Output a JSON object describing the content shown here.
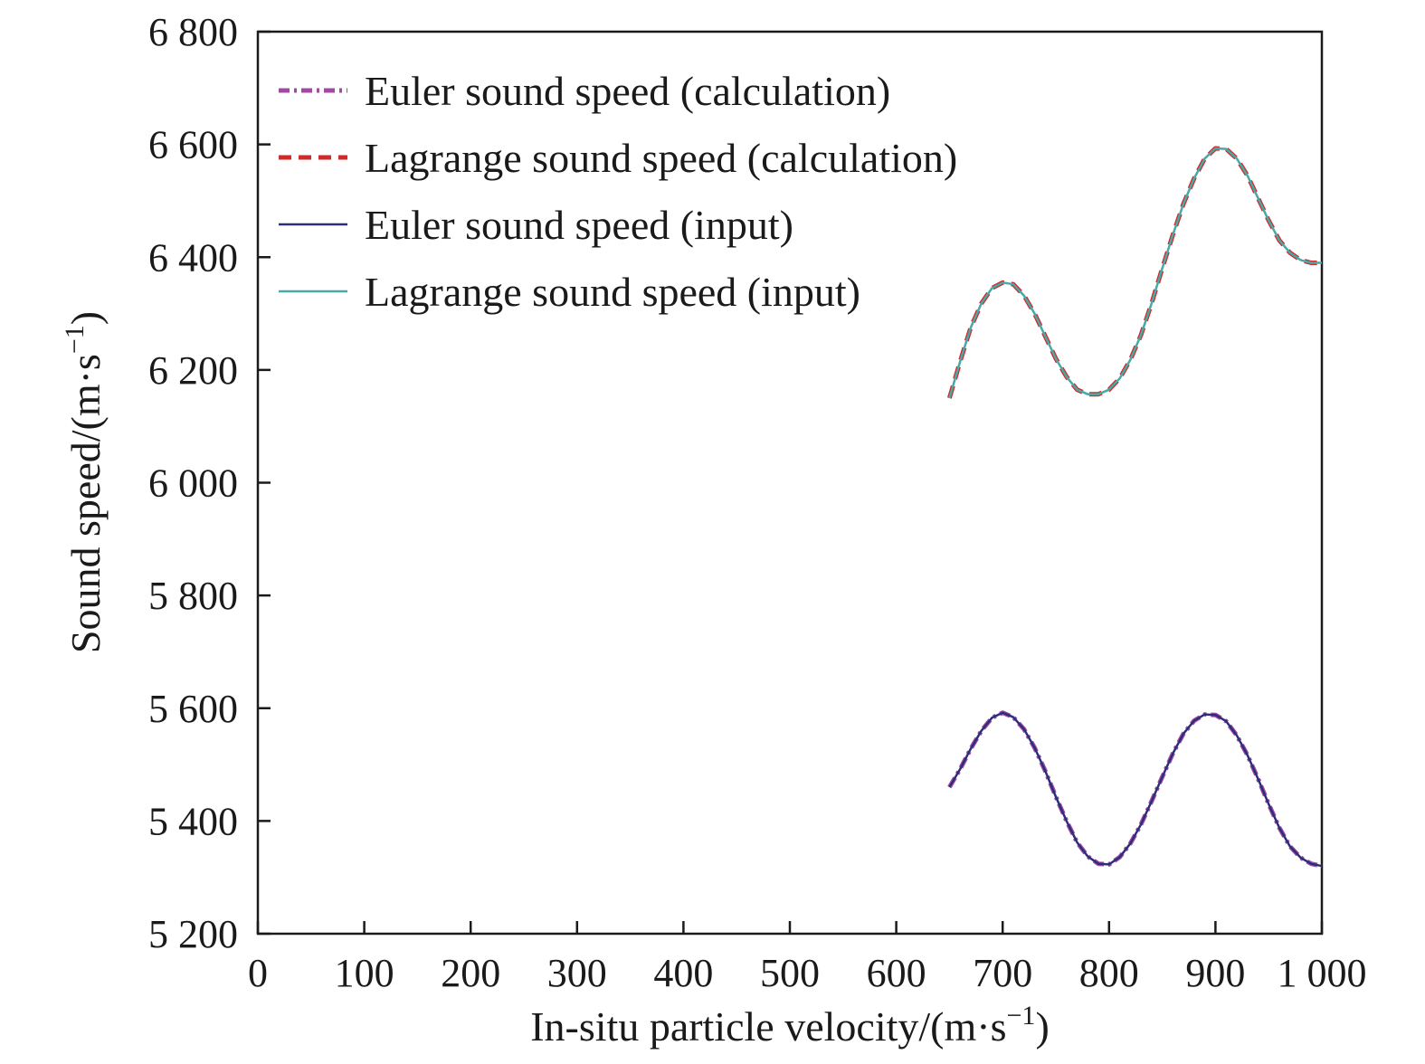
{
  "chart_data": {
    "type": "line",
    "xlabel": "In-situ particle velocity/(m·s",
    "ylabel": "Sound speed/(m·s",
    "unit_exponent": "−1",
    "unit_close": ")",
    "xlim": [
      0,
      1000
    ],
    "ylim": [
      5200,
      6800
    ],
    "x_ticks": [
      0,
      100,
      200,
      300,
      400,
      500,
      600,
      700,
      800,
      900,
      1000
    ],
    "x_tick_labels": [
      "0",
      "100",
      "200",
      "300",
      "400",
      "500",
      "600",
      "700",
      "800",
      "900",
      "1 000"
    ],
    "y_ticks": [
      5200,
      5400,
      5600,
      5800,
      6000,
      6200,
      6400,
      6600,
      6800
    ],
    "y_tick_labels": [
      "5 200",
      "5 400",
      "5 600",
      "5 800",
      "6 000",
      "6 200",
      "6 400",
      "6 600",
      "6 800"
    ],
    "grid": false,
    "legend_position": "top-left",
    "series": [
      {
        "name": "Euler sound speed (calculation)",
        "color": "#a349a4",
        "style": "dashdot",
        "x": [
          650,
          660,
          670,
          680,
          690,
          700,
          710,
          720,
          730,
          740,
          750,
          760,
          770,
          780,
          790,
          800,
          810,
          820,
          830,
          840,
          850,
          860,
          870,
          880,
          890,
          900,
          910,
          920,
          930,
          940,
          950,
          960,
          970,
          980,
          990,
          1000
        ],
        "y": [
          5460,
          5492,
          5528,
          5560,
          5583,
          5592,
          5584,
          5563,
          5530,
          5489,
          5443,
          5400,
          5362,
          5337,
          5324,
          5323,
          5336,
          5360,
          5394,
          5435,
          5478,
          5520,
          5555,
          5578,
          5589,
          5588,
          5577,
          5552,
          5517,
          5475,
          5430,
          5388,
          5355,
          5335,
          5324,
          5320
        ]
      },
      {
        "name": "Lagrange sound speed (calculation)",
        "color": "#d12a2a",
        "style": "dashed",
        "x": [
          650,
          660,
          670,
          680,
          690,
          700,
          710,
          720,
          730,
          740,
          750,
          760,
          770,
          780,
          790,
          800,
          810,
          820,
          830,
          840,
          850,
          860,
          870,
          880,
          890,
          900,
          910,
          920,
          930,
          940,
          950,
          960,
          970,
          980,
          990,
          1000
        ],
        "y": [
          6150,
          6215,
          6275,
          6318,
          6345,
          6355,
          6352,
          6332,
          6300,
          6260,
          6220,
          6188,
          6165,
          6157,
          6157,
          6165,
          6185,
          6218,
          6262,
          6318,
          6380,
          6440,
          6495,
          6540,
          6575,
          6593,
          6592,
          6575,
          6545,
          6505,
          6465,
          6430,
          6408,
          6395,
          6390,
          6390
        ]
      },
      {
        "name": "Euler sound speed (input)",
        "color": "#2b2f7a",
        "style": "solid",
        "x": [
          650,
          660,
          670,
          680,
          690,
          700,
          710,
          720,
          730,
          740,
          750,
          760,
          770,
          780,
          790,
          800,
          810,
          820,
          830,
          840,
          850,
          860,
          870,
          880,
          890,
          900,
          910,
          920,
          930,
          940,
          950,
          960,
          970,
          980,
          990,
          1000
        ],
        "y": [
          5460,
          5492,
          5528,
          5560,
          5583,
          5592,
          5584,
          5563,
          5530,
          5489,
          5443,
          5400,
          5362,
          5337,
          5324,
          5323,
          5336,
          5360,
          5394,
          5435,
          5478,
          5520,
          5555,
          5578,
          5589,
          5588,
          5577,
          5552,
          5517,
          5475,
          5430,
          5388,
          5355,
          5335,
          5324,
          5320
        ]
      },
      {
        "name": "Lagrange sound speed (input)",
        "color": "#4aa8a8",
        "style": "solid",
        "x": [
          650,
          660,
          670,
          680,
          690,
          700,
          710,
          720,
          730,
          740,
          750,
          760,
          770,
          780,
          790,
          800,
          810,
          820,
          830,
          840,
          850,
          860,
          870,
          880,
          890,
          900,
          910,
          920,
          930,
          940,
          950,
          960,
          970,
          980,
          990,
          1000
        ],
        "y": [
          6150,
          6215,
          6275,
          6318,
          6345,
          6355,
          6352,
          6332,
          6300,
          6260,
          6220,
          6188,
          6165,
          6157,
          6157,
          6165,
          6185,
          6218,
          6262,
          6318,
          6380,
          6440,
          6495,
          6540,
          6575,
          6593,
          6592,
          6575,
          6545,
          6505,
          6465,
          6430,
          6408,
          6395,
          6390,
          6390
        ]
      }
    ]
  }
}
